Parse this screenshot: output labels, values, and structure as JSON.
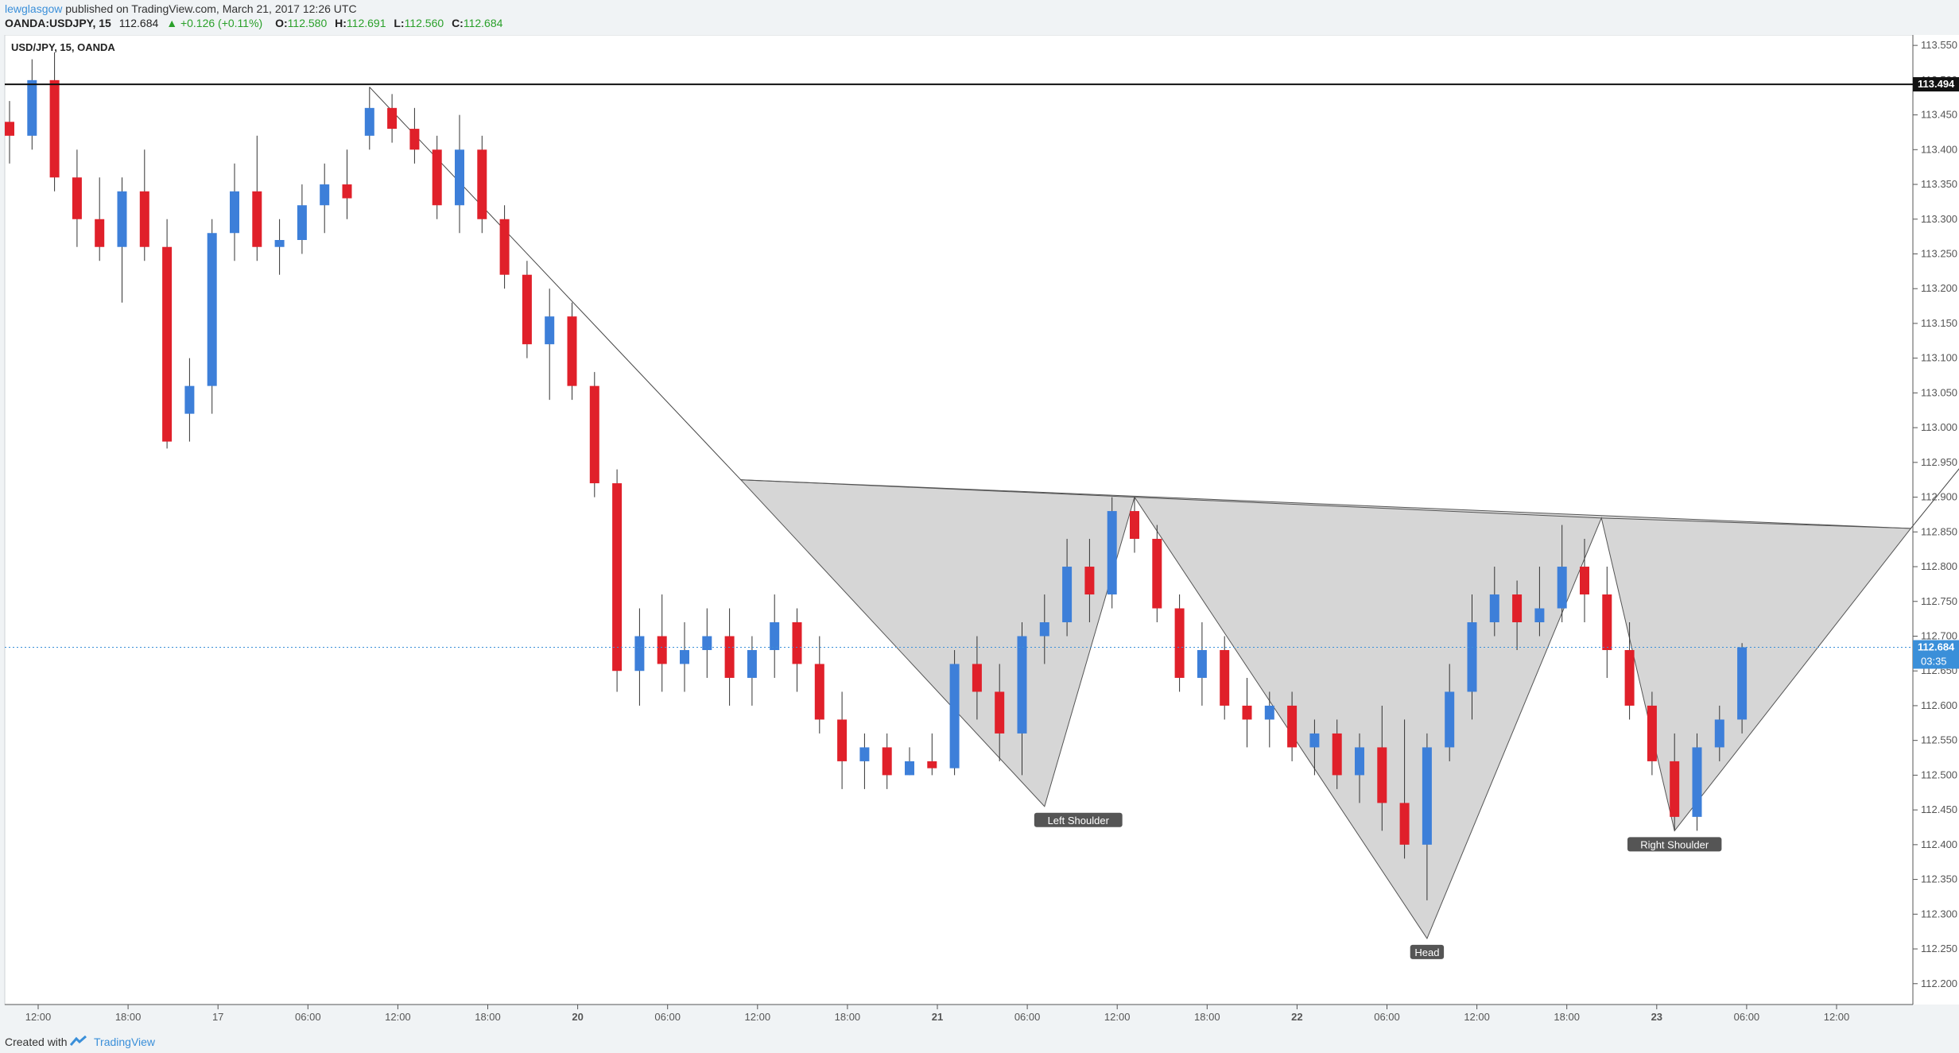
{
  "header": {
    "author": "lewglasgow",
    "published_text": "published on TradingView.com, March 21, 2017 12:26 UTC",
    "symbol": "OANDA:USDJPY, 15",
    "last": "112.684",
    "change": "+0.126 (+0.11%)",
    "o_label": "O:",
    "o_value": "112.580",
    "h_label": "H:",
    "h_value": "112.691",
    "l_label": "L:",
    "l_value": "112.560",
    "c_label": "C:",
    "c_value": "112.684"
  },
  "footer": {
    "created_with": "Created with",
    "brand": "TradingView"
  },
  "colors": {
    "up": "#3d7fd9",
    "down": "#e0202a",
    "pattern_fill": "#c8c8c8",
    "last_price_badge": "#3a8fd9"
  },
  "chart_data": {
    "type": "candlestick",
    "title": "USD/JPY, 15, OANDA",
    "y_ticks": [
      "113.550",
      "113.500",
      "113.450",
      "113.400",
      "113.350",
      "113.300",
      "113.250",
      "113.200",
      "113.150",
      "113.100",
      "113.050",
      "113.000",
      "112.950",
      "112.900",
      "112.850",
      "112.800",
      "112.750",
      "112.700",
      "112.650",
      "112.600",
      "112.550",
      "112.500",
      "112.450",
      "112.400",
      "112.350",
      "112.300",
      "112.250",
      "112.200"
    ],
    "ylim": [
      112.17,
      113.565
    ],
    "x_ticks": [
      "12:00",
      "18:00",
      "17",
      "06:00",
      "12:00",
      "18:00",
      "20",
      "06:00",
      "12:00",
      "18:00",
      "21",
      "06:00",
      "12:00",
      "18:00",
      "22",
      "06:00",
      "12:00",
      "18:00",
      "23",
      "06:00",
      "12:00"
    ],
    "bold_x_ticks": [
      "20",
      "21",
      "22",
      "23"
    ],
    "resistance_level": {
      "value": 113.494,
      "label": "113.494"
    },
    "last_price": {
      "value": 112.684,
      "label": "112.684",
      "countdown": "03:35"
    },
    "annotations": [
      {
        "text": "Left Shoulder",
        "x_index": 47.5,
        "y": 112.455
      },
      {
        "text": "Head",
        "x_index": 63.0,
        "y": 112.265
      },
      {
        "text": "Right Shoulder",
        "x_index": 74.0,
        "y": 112.42
      }
    ],
    "neckline": [
      {
        "x_index": 32.5,
        "y": 112.925
      },
      {
        "x_index": 50.0,
        "y": 112.9
      },
      {
        "x_index": 70.75,
        "y": 112.87
      },
      {
        "x_index": 84.5,
        "y": 112.855
      }
    ],
    "pattern_points": [
      {
        "x_index": 32.5,
        "y": 112.925
      },
      {
        "x_index": 46.0,
        "y": 112.455
      },
      {
        "x_index": 50.0,
        "y": 112.9
      },
      {
        "x_index": 63.0,
        "y": 112.265
      },
      {
        "x_index": 70.75,
        "y": 112.87
      },
      {
        "x_index": 74.0,
        "y": 112.42
      },
      {
        "x_index": 84.5,
        "y": 112.855
      }
    ],
    "trendline": [
      {
        "x_index": 16.0,
        "y": 113.49
      },
      {
        "x_index": 32.5,
        "y": 112.925
      }
    ],
    "target_line": [
      {
        "x_index": 84.5,
        "y": 112.855
      },
      {
        "x_index": 100.5,
        "y": 113.494
      }
    ],
    "candles": [
      [
        113.44,
        113.47,
        113.38,
        113.42
      ],
      [
        113.42,
        113.53,
        113.4,
        113.5
      ],
      [
        113.5,
        113.54,
        113.34,
        113.36
      ],
      [
        113.36,
        113.4,
        113.26,
        113.3
      ],
      [
        113.3,
        113.36,
        113.24,
        113.26
      ],
      [
        113.26,
        113.36,
        113.18,
        113.34
      ],
      [
        113.34,
        113.4,
        113.24,
        113.26
      ],
      [
        113.26,
        113.3,
        112.97,
        112.98
      ],
      [
        113.02,
        113.1,
        112.98,
        113.06
      ],
      [
        113.06,
        113.3,
        113.02,
        113.28
      ],
      [
        113.28,
        113.38,
        113.24,
        113.34
      ],
      [
        113.34,
        113.42,
        113.24,
        113.26
      ],
      [
        113.26,
        113.3,
        113.22,
        113.27
      ],
      [
        113.27,
        113.35,
        113.25,
        113.32
      ],
      [
        113.32,
        113.38,
        113.28,
        113.35
      ],
      [
        113.35,
        113.4,
        113.3,
        113.33
      ],
      [
        113.42,
        113.49,
        113.4,
        113.46
      ],
      [
        113.46,
        113.48,
        113.41,
        113.43
      ],
      [
        113.43,
        113.46,
        113.38,
        113.4
      ],
      [
        113.4,
        113.42,
        113.3,
        113.32
      ],
      [
        113.32,
        113.45,
        113.28,
        113.4
      ],
      [
        113.4,
        113.42,
        113.28,
        113.3
      ],
      [
        113.3,
        113.32,
        113.2,
        113.22
      ],
      [
        113.22,
        113.24,
        113.1,
        113.12
      ],
      [
        113.12,
        113.2,
        113.04,
        113.16
      ],
      [
        113.16,
        113.18,
        113.04,
        113.06
      ],
      [
        113.06,
        113.08,
        112.9,
        112.92
      ],
      [
        112.92,
        112.94,
        112.62,
        112.65
      ],
      [
        112.65,
        112.74,
        112.6,
        112.7
      ],
      [
        112.7,
        112.76,
        112.62,
        112.66
      ],
      [
        112.66,
        112.72,
        112.62,
        112.68
      ],
      [
        112.68,
        112.74,
        112.64,
        112.7
      ],
      [
        112.7,
        112.74,
        112.6,
        112.64
      ],
      [
        112.64,
        112.7,
        112.6,
        112.68
      ],
      [
        112.68,
        112.76,
        112.64,
        112.72
      ],
      [
        112.72,
        112.74,
        112.62,
        112.66
      ],
      [
        112.66,
        112.7,
        112.56,
        112.58
      ],
      [
        112.58,
        112.62,
        112.48,
        112.52
      ],
      [
        112.52,
        112.56,
        112.48,
        112.54
      ],
      [
        112.54,
        112.56,
        112.48,
        112.5
      ],
      [
        112.5,
        112.54,
        112.5,
        112.52
      ],
      [
        112.52,
        112.56,
        112.5,
        112.51
      ],
      [
        112.51,
        112.68,
        112.5,
        112.66
      ],
      [
        112.66,
        112.7,
        112.58,
        112.62
      ],
      [
        112.62,
        112.66,
        112.52,
        112.56
      ],
      [
        112.56,
        112.72,
        112.5,
        112.7
      ],
      [
        112.7,
        112.76,
        112.66,
        112.72
      ],
      [
        112.72,
        112.84,
        112.7,
        112.8
      ],
      [
        112.8,
        112.84,
        112.72,
        112.76
      ],
      [
        112.76,
        112.9,
        112.74,
        112.88
      ],
      [
        112.88,
        112.9,
        112.82,
        112.84
      ],
      [
        112.84,
        112.86,
        112.72,
        112.74
      ],
      [
        112.74,
        112.76,
        112.62,
        112.64
      ],
      [
        112.64,
        112.72,
        112.6,
        112.68
      ],
      [
        112.68,
        112.7,
        112.58,
        112.6
      ],
      [
        112.6,
        112.64,
        112.54,
        112.58
      ],
      [
        112.58,
        112.62,
        112.54,
        112.6
      ],
      [
        112.6,
        112.62,
        112.52,
        112.54
      ],
      [
        112.54,
        112.58,
        112.5,
        112.56
      ],
      [
        112.56,
        112.58,
        112.48,
        112.5
      ],
      [
        112.5,
        112.56,
        112.46,
        112.54
      ],
      [
        112.54,
        112.6,
        112.42,
        112.46
      ],
      [
        112.46,
        112.58,
        112.38,
        112.4
      ],
      [
        112.4,
        112.56,
        112.32,
        112.54
      ],
      [
        112.54,
        112.66,
        112.52,
        112.62
      ],
      [
        112.62,
        112.76,
        112.58,
        112.72
      ],
      [
        112.72,
        112.8,
        112.7,
        112.76
      ],
      [
        112.76,
        112.78,
        112.68,
        112.72
      ],
      [
        112.72,
        112.8,
        112.7,
        112.74
      ],
      [
        112.74,
        112.86,
        112.72,
        112.8
      ],
      [
        112.8,
        112.84,
        112.72,
        112.76
      ],
      [
        112.76,
        112.8,
        112.64,
        112.68
      ],
      [
        112.68,
        112.72,
        112.58,
        112.6
      ],
      [
        112.6,
        112.62,
        112.5,
        112.52
      ],
      [
        112.52,
        112.56,
        112.42,
        112.44
      ],
      [
        112.44,
        112.56,
        112.42,
        112.54
      ],
      [
        112.54,
        112.6,
        112.52,
        112.58
      ],
      [
        112.58,
        112.69,
        112.56,
        112.684
      ]
    ]
  }
}
